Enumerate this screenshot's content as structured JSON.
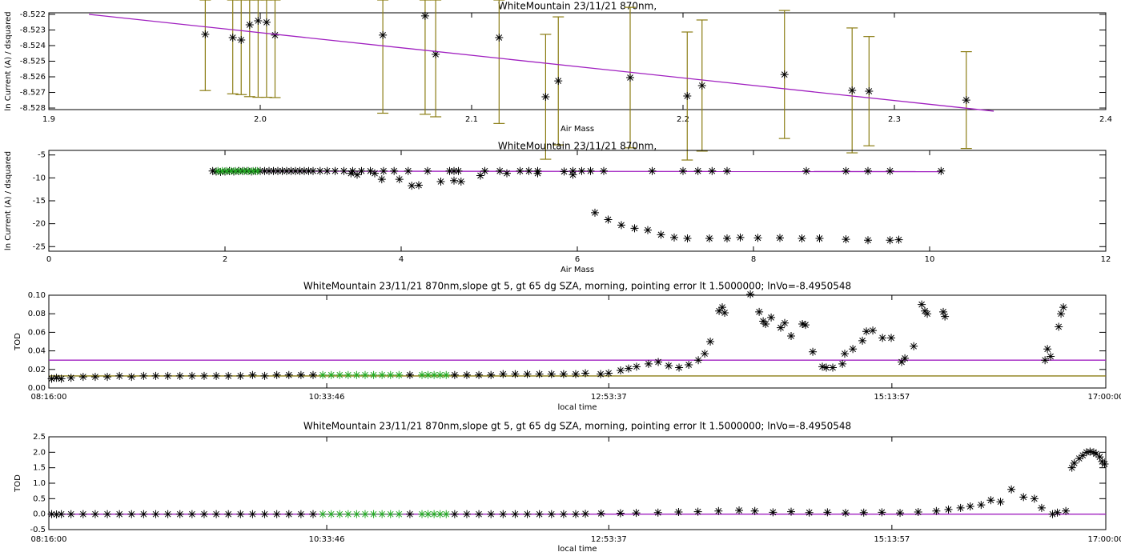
{
  "chart_data": [
    {
      "type": "scatter",
      "title": "WhiteMountain 23/11/21 870nm,",
      "x_label": "Air Mass",
      "y_label": "ln Current (A) / dsquared",
      "xlim": [
        1.9,
        2.4
      ],
      "ylim": [
        -8.5281,
        -8.5219
      ],
      "xticks": [
        1.9,
        {
          "value": 2,
          "label": "2.0"
        },
        2.1,
        2.2,
        2.3,
        2.4
      ],
      "yticks": [
        -8.522,
        -8.523,
        -8.524,
        -8.525,
        -8.526,
        -8.527,
        -8.528
      ],
      "series": [
        {
          "style": "asterisk",
          "color": "#000000",
          "error_color": "#8b7d14",
          "x": [
            1.974,
            1.987,
            1.991,
            1.995,
            1.999,
            2.003,
            2.007,
            2.058,
            2.078,
            2.083,
            2.113,
            2.135,
            2.141,
            2.175,
            2.202,
            2.209,
            2.248,
            2.28,
            2.288,
            2.334
          ],
          "values": [
            -8.52328,
            -8.52349,
            -8.52364,
            -8.52267,
            -8.52241,
            -8.52251,
            -8.52333,
            -8.52333,
            -8.5221,
            -8.52456,
            -8.52349,
            -8.52728,
            -8.52626,
            -8.52605,
            -8.52723,
            -8.52656,
            -8.52585,
            -8.52687,
            -8.52692,
            -8.52749
          ],
          "errors": [
            0.0036,
            0.0036,
            0.0035,
            0.0046,
            0.0049,
            0.0048,
            0.004,
            0.005,
            0.0063,
            0.004,
            0.0055,
            0.004,
            0.0041,
            0.0045,
            0.0041,
            0.0042,
            0.0041,
            0.004,
            0.0035,
            0.0031
          ]
        },
        {
          "style": "line",
          "color": "#a020c0",
          "x": [
            1.919,
            2.347
          ],
          "values": [
            -8.522,
            -8.5282
          ]
        }
      ]
    },
    {
      "type": "scatter",
      "title": "WhiteMountain 23/11/21 870nm,",
      "x_label": "Air Mass",
      "y_label": "ln Current (A) / dsquared",
      "xlim": [
        0,
        12
      ],
      "ylim": [
        -26,
        -4
      ],
      "xticks": [
        0,
        2,
        4,
        6,
        8,
        10,
        12
      ],
      "yticks": [
        -25,
        -20,
        -15,
        -10,
        -5
      ],
      "series": [
        {
          "style": "line",
          "color": "#a020c0",
          "x": [
            1.92,
            10.13
          ],
          "values": [
            -8.522,
            -8.639
          ]
        },
        {
          "style": "asterisk",
          "color": "#000000",
          "x": [
            1.86,
            1.9,
            1.95,
            2.0,
            2.05,
            2.1,
            2.15,
            2.2,
            2.25,
            2.3,
            2.35,
            2.4,
            2.45,
            2.5,
            2.55,
            2.6,
            2.65,
            2.7,
            2.75,
            2.8,
            2.85,
            2.9,
            2.95,
            3.0,
            3.08,
            3.16,
            3.25,
            3.35,
            3.45,
            3.55,
            3.65,
            3.8,
            3.92,
            4.08,
            4.3,
            4.55,
            4.6,
            4.65,
            4.95,
            5.12,
            5.35,
            5.45,
            5.55,
            5.85,
            5.95,
            6.05,
            6.15,
            6.3,
            6.85,
            7.2,
            7.37,
            7.53,
            7.7,
            8.6,
            9.05,
            9.3,
            9.55,
            10.13,
            3.43,
            3.5,
            3.7,
            3.78,
            3.98,
            4.12,
            4.2,
            4.45,
            4.6,
            4.68,
            4.9,
            5.2,
            5.55,
            5.95,
            6.2,
            6.35,
            6.5,
            6.65,
            6.8,
            6.95,
            7.1,
            7.25,
            7.5,
            7.7,
            7.85,
            8.05,
            8.3,
            8.55,
            8.75,
            9.05,
            9.3,
            9.55,
            9.65
          ],
          "values": [
            -8.5,
            -8.6,
            -8.7,
            -8.6,
            -8.5,
            -8.6,
            -8.5,
            -8.5,
            -8.5,
            -8.6,
            -8.5,
            -8.5,
            -8.5,
            -8.5,
            -8.5,
            -8.5,
            -8.5,
            -8.5,
            -8.5,
            -8.5,
            -8.5,
            -8.5,
            -8.5,
            -8.5,
            -8.5,
            -8.5,
            -8.5,
            -8.5,
            -8.5,
            -8.5,
            -8.5,
            -8.5,
            -8.5,
            -8.5,
            -8.5,
            -8.5,
            -8.5,
            -8.5,
            -8.5,
            -8.5,
            -8.5,
            -8.5,
            -8.5,
            -8.6,
            -8.5,
            -8.5,
            -8.5,
            -8.5,
            -8.5,
            -8.5,
            -8.5,
            -8.5,
            -8.5,
            -8.5,
            -8.5,
            -8.5,
            -8.5,
            -8.5,
            -9.0,
            -9.3,
            -9.0,
            -10.3,
            -10.3,
            -11.7,
            -11.6,
            -10.8,
            -10.6,
            -10.8,
            -9.5,
            -9.0,
            -9.0,
            -9.3,
            -17.6,
            -19.1,
            -20.3,
            -21.0,
            -21.4,
            -22.4,
            -23.0,
            -23.2,
            -23.2,
            -23.2,
            -23.0,
            -23.1,
            -23.1,
            -23.2,
            -23.2,
            -23.4,
            -23.6,
            -23.6,
            -23.5
          ]
        },
        {
          "style": "asterisk",
          "color": "#22aa22",
          "x": [
            1.92,
            1.97,
            2.02,
            2.07,
            2.12,
            2.17,
            2.22,
            2.27,
            2.32,
            2.37
          ],
          "values": [
            -8.5,
            -8.5,
            -8.5,
            -8.5,
            -8.5,
            -8.5,
            -8.5,
            -8.5,
            -8.5,
            -8.5
          ]
        }
      ]
    },
    {
      "type": "scatter",
      "title": "WhiteMountain 23/11/21 870nm,slope gt 5, gt 65 dg SZA, morning, pointing error lt 1.5000000; lnVo=-8.4950548",
      "x_label": "local time",
      "y_label": "TOD",
      "xlim": [
        8.26667,
        17
      ],
      "ylim": [
        0,
        0.1
      ],
      "xticks": [
        {
          "value": 8.26667,
          "label": "08:16:00"
        },
        {
          "value": 10.5628,
          "label": "10:33:46"
        },
        {
          "value": 12.8936,
          "label": "12:53:37"
        },
        {
          "value": 15.2325,
          "label": "15:13:57"
        },
        {
          "value": 17,
          "label": "17:00:00"
        }
      ],
      "yticks": [
        {
          "value": 0,
          "label": "0.00"
        },
        {
          "value": 0.02,
          "label": "0.02"
        },
        {
          "value": 0.04,
          "label": "0.04"
        },
        {
          "value": 0.06,
          "label": "0.06"
        },
        {
          "value": 0.08,
          "label": "0.08"
        },
        {
          "value": 0.1,
          "label": "0.10"
        }
      ],
      "series": [
        {
          "style": "line",
          "color": "#a020c0",
          "x": [
            8.26667,
            17
          ],
          "values": [
            0.03,
            0.03
          ]
        },
        {
          "style": "line",
          "color": "#8b7d14",
          "x": [
            8.26667,
            17
          ],
          "values": [
            0.013,
            0.013
          ]
        },
        {
          "style": "asterisk",
          "color": "#000000",
          "x": [
            8.29,
            8.33,
            8.37,
            8.45,
            8.55,
            8.65,
            8.75,
            8.85,
            8.95,
            9.05,
            9.15,
            9.25,
            9.35,
            9.45,
            9.55,
            9.65,
            9.75,
            9.85,
            9.95,
            10.05,
            10.15,
            10.25,
            10.35,
            10.45,
            11.25,
            11.62,
            11.72,
            11.82,
            11.92,
            12.02,
            12.12,
            12.22,
            12.32,
            12.42,
            12.52,
            12.62,
            12.7,
            12.826,
            12.892,
            12.991,
            13.057,
            13.123,
            13.222,
            13.302,
            13.388,
            13.474,
            13.554,
            13.633,
            13.686,
            13.732,
            13.805,
            13.831,
            13.851,
            14.063,
            14.136,
            14.169,
            14.189,
            14.235,
            14.314,
            14.347,
            14.4,
            14.493,
            14.519,
            14.579,
            14.658,
            14.691,
            14.744,
            14.824,
            14.843,
            14.91,
            14.989,
            15.022,
            15.075,
            15.155,
            15.227,
            15.313,
            15.34,
            15.413,
            15.479,
            15.505,
            15.525,
            15.657,
            15.671,
            16.498,
            16.518,
            16.544,
            16.611,
            16.63,
            16.65
          ],
          "values": [
            0.01,
            0.011,
            0.01,
            0.011,
            0.012,
            0.012,
            0.012,
            0.013,
            0.012,
            0.013,
            0.013,
            0.013,
            0.013,
            0.013,
            0.013,
            0.013,
            0.013,
            0.013,
            0.014,
            0.013,
            0.014,
            0.014,
            0.014,
            0.014,
            0.014,
            0.014,
            0.014,
            0.014,
            0.014,
            0.015,
            0.015,
            0.015,
            0.015,
            0.015,
            0.015,
            0.015,
            0.016,
            0.015,
            0.016,
            0.019,
            0.021,
            0.023,
            0.026,
            0.028,
            0.024,
            0.022,
            0.025,
            0.03,
            0.037,
            0.05,
            0.083,
            0.087,
            0.081,
            0.101,
            0.082,
            0.072,
            0.069,
            0.076,
            0.065,
            0.07,
            0.056,
            0.069,
            0.068,
            0.039,
            0.023,
            0.022,
            0.022,
            0.026,
            0.037,
            0.042,
            0.051,
            0.061,
            0.062,
            0.054,
            0.054,
            0.028,
            0.032,
            0.045,
            0.09,
            0.083,
            0.08,
            0.082,
            0.077,
            0.03,
            0.042,
            0.034,
            0.066,
            0.08,
            0.087
          ]
        },
        {
          "style": "asterisk",
          "color": "#22aa22",
          "x": [
            10.53,
            10.6,
            10.67,
            10.74,
            10.81,
            10.88,
            10.95,
            11.02,
            11.09,
            11.16,
            11.35,
            11.4,
            11.45,
            11.5,
            11.55
          ],
          "values": [
            0.014,
            0.014,
            0.014,
            0.014,
            0.014,
            0.014,
            0.014,
            0.014,
            0.014,
            0.014,
            0.014,
            0.014,
            0.014,
            0.014,
            0.014
          ]
        }
      ]
    },
    {
      "type": "scatter",
      "title": "WhiteMountain 23/11/21 870nm,slope gt 5, gt 65 dg SZA, morning, pointing error lt 1.5000000; lnVo=-8.4950548",
      "x_label": "local time",
      "y_label": "TOD",
      "xlim": [
        8.26667,
        17
      ],
      "ylim": [
        -0.5,
        2.5
      ],
      "xticks": [
        {
          "value": 8.26667,
          "label": "08:16:00"
        },
        {
          "value": 10.5628,
          "label": "10:33:46"
        },
        {
          "value": 12.8936,
          "label": "12:53:37"
        },
        {
          "value": 15.2325,
          "label": "15:13:57"
        },
        {
          "value": 17,
          "label": "17:00:00"
        }
      ],
      "yticks": [
        -0.5,
        {
          "value": 0,
          "label": "0.0"
        },
        0.5,
        {
          "value": 1,
          "label": "1.0"
        },
        1.5,
        {
          "value": 2,
          "label": "2.0"
        },
        2.5
      ],
      "series": [
        {
          "style": "line",
          "color": "#a020c0",
          "x": [
            8.26667,
            17
          ],
          "values": [
            0,
            0
          ]
        },
        {
          "style": "asterisk",
          "color": "#000000",
          "x": [
            8.29,
            8.33,
            8.37,
            8.45,
            8.55,
            8.65,
            8.75,
            8.85,
            8.95,
            9.05,
            9.15,
            9.25,
            9.35,
            9.45,
            9.55,
            9.65,
            9.75,
            9.85,
            9.95,
            10.05,
            10.15,
            10.25,
            10.35,
            10.45,
            11.25,
            11.62,
            11.72,
            11.82,
            11.92,
            12.02,
            12.12,
            12.22,
            12.32,
            12.42,
            12.52,
            12.62,
            12.7,
            12.83,
            12.99,
            13.12,
            13.3,
            13.47,
            13.63,
            13.8,
            13.97,
            14.1,
            14.25,
            14.4,
            14.55,
            14.7,
            14.85,
            15.0,
            15.15,
            15.3,
            15.45,
            15.6,
            15.7,
            15.8,
            15.88,
            15.97,
            16.05,
            16.13,
            16.22,
            16.32,
            16.41,
            16.47,
            16.56,
            16.6,
            16.67,
            16.72,
            16.74,
            16.78,
            16.81,
            16.84,
            16.87,
            16.9,
            16.92,
            16.95,
            16.97,
            16.99
          ],
          "values": [
            0.0,
            -0.01,
            0.0,
            0.0,
            0.0,
            0.0,
            0.0,
            0.0,
            0.0,
            0.0,
            0.0,
            0.0,
            0.0,
            0.0,
            0.0,
            0.0,
            0.0,
            0.0,
            0.0,
            0.0,
            0.0,
            0.0,
            0.0,
            0.0,
            0.0,
            0.0,
            0.0,
            0.0,
            0.0,
            0.0,
            0.0,
            0.0,
            0.0,
            0.0,
            0.0,
            0.0,
            0.01,
            0.02,
            0.03,
            0.04,
            0.05,
            0.07,
            0.08,
            0.1,
            0.12,
            0.1,
            0.06,
            0.08,
            0.05,
            0.06,
            0.04,
            0.05,
            0.06,
            0.04,
            0.07,
            0.1,
            0.15,
            0.2,
            0.25,
            0.3,
            0.45,
            0.4,
            0.8,
            0.55,
            0.5,
            0.2,
            0.0,
            0.05,
            0.1,
            1.5,
            1.65,
            1.8,
            1.9,
            2.0,
            2.02,
            2.0,
            1.95,
            1.85,
            1.7,
            1.62
          ]
        },
        {
          "style": "asterisk",
          "color": "#22aa22",
          "x": [
            10.53,
            10.6,
            10.67,
            10.74,
            10.81,
            10.88,
            10.95,
            11.02,
            11.09,
            11.16,
            11.35,
            11.4,
            11.45,
            11.5,
            11.55
          ],
          "values": [
            0,
            0,
            0,
            0,
            0,
            0,
            0,
            0,
            0,
            0,
            0,
            0,
            0,
            0,
            0
          ]
        }
      ]
    }
  ]
}
